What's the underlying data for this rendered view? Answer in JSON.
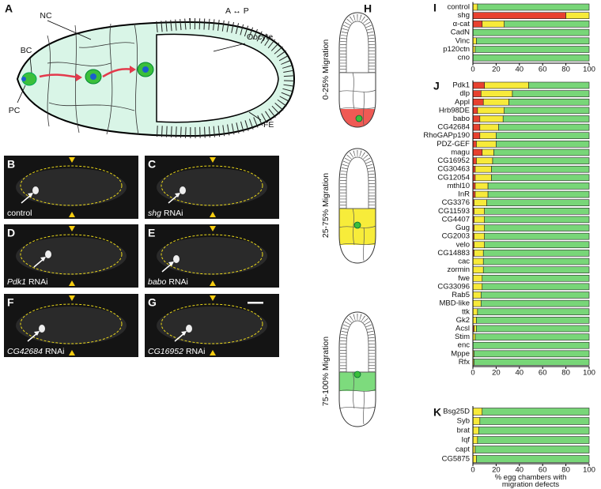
{
  "panels": [
    "A",
    "B",
    "C",
    "D",
    "E",
    "F",
    "G",
    "H"
  ],
  "diagram": {
    "axis": "A ↔ P",
    "labels": [
      "BC",
      "NC",
      "PC",
      "Oocyte",
      "FE"
    ]
  },
  "micrographs": [
    {
      "label": "control"
    },
    {
      "gene": "shg",
      "label": "RNAi"
    },
    {
      "gene": "Pdk1",
      "label": "RNAi"
    },
    {
      "gene": "babo",
      "label": "RNAi"
    },
    {
      "gene": "CG42684",
      "label": "RNAi"
    },
    {
      "gene": "CG16952",
      "label": "RNAi"
    }
  ],
  "chart_data": [
    {
      "type": "stacked-barh",
      "title": "I",
      "categories": [
        "control",
        "shg",
        "α-cat",
        "CadN",
        "Vinc",
        "p120ctn",
        "cno"
      ],
      "series": [
        {
          "name": "0-25% Migration",
          "color": "#e8412f",
          "values": [
            0,
            80,
            8,
            0,
            0,
            0,
            0
          ]
        },
        {
          "name": "25-75% Migration",
          "color": "#f7ea3a",
          "values": [
            4,
            20,
            19,
            0,
            3,
            2,
            0
          ]
        },
        {
          "name": "75-100% Migration",
          "color": "#78d678",
          "values": [
            96,
            0,
            73,
            100,
            97,
            98,
            100
          ]
        }
      ],
      "xlim": [
        0,
        100
      ],
      "xticks": [
        0,
        20,
        40,
        60,
        80,
        100
      ]
    },
    {
      "type": "stacked-barh",
      "title": "J",
      "categories": [
        "Pdk1",
        "dlp",
        "Appl",
        "Hrb98DE",
        "babo",
        "CG42684",
        "RhoGAPp190",
        "PDZ-GEF",
        "magu",
        "CG16952",
        "CG30463",
        "CG12054",
        "mthl10",
        "InR",
        "CG3376",
        "CG11593",
        "CG4407",
        "Gug",
        "CG2003",
        "velo",
        "CG14883",
        "cac",
        "zormin",
        "fwe",
        "CG33096",
        "Rab5",
        "MBD-like",
        "ttk",
        "Gk2",
        "Acsl",
        "Stim",
        "enc",
        "Mppe",
        "Rfx"
      ],
      "series": [
        {
          "name": "0-25% Migration",
          "color": "#e8412f",
          "values": [
            10,
            7,
            9,
            4,
            6,
            6,
            6,
            3,
            8,
            3,
            2,
            2,
            2,
            2,
            1,
            1,
            1,
            1,
            1,
            1,
            1,
            0,
            0,
            0,
            0,
            0,
            0,
            0,
            0,
            1,
            0,
            0,
            0,
            0
          ]
        },
        {
          "name": "25-75% Migration",
          "color": "#f7ea3a",
          "values": [
            38,
            27,
            22,
            23,
            20,
            16,
            14,
            17,
            10,
            14,
            14,
            14,
            11,
            11,
            11,
            9,
            9,
            9,
            9,
            9,
            8,
            9,
            9,
            8,
            8,
            7,
            7,
            4,
            3,
            2,
            2,
            0,
            1,
            1
          ]
        },
        {
          "name": "75-100% Migration",
          "color": "#78d678",
          "values": [
            52,
            66,
            69,
            73,
            74,
            78,
            80,
            80,
            82,
            83,
            84,
            84,
            87,
            87,
            88,
            90,
            90,
            90,
            90,
            90,
            91,
            91,
            91,
            92,
            92,
            93,
            93,
            96,
            97,
            97,
            98,
            100,
            99,
            99
          ]
        }
      ],
      "xlim": [
        0,
        100
      ],
      "xticks": [
        0,
        20,
        40,
        60,
        80,
        100
      ]
    },
    {
      "type": "stacked-barh",
      "title": "K",
      "categories": [
        "Bsg25D",
        "Syb",
        "brat",
        "Iqf",
        "capt",
        "CG5875"
      ],
      "series": [
        {
          "name": "0-25% Migration",
          "color": "#e8412f",
          "values": [
            0,
            0,
            0,
            0,
            0,
            0
          ]
        },
        {
          "name": "25-75% Migration",
          "color": "#f7ea3a",
          "values": [
            8,
            6,
            5,
            4,
            2,
            3
          ]
        },
        {
          "name": "75-100% Migration",
          "color": "#78d678",
          "values": [
            92,
            94,
            95,
            96,
            98,
            97
          ]
        }
      ],
      "xlim": [
        0,
        100
      ],
      "xticks": [
        0,
        20,
        40,
        60,
        80,
        100
      ],
      "xlabel": "% egg chambers with migration defects"
    }
  ]
}
